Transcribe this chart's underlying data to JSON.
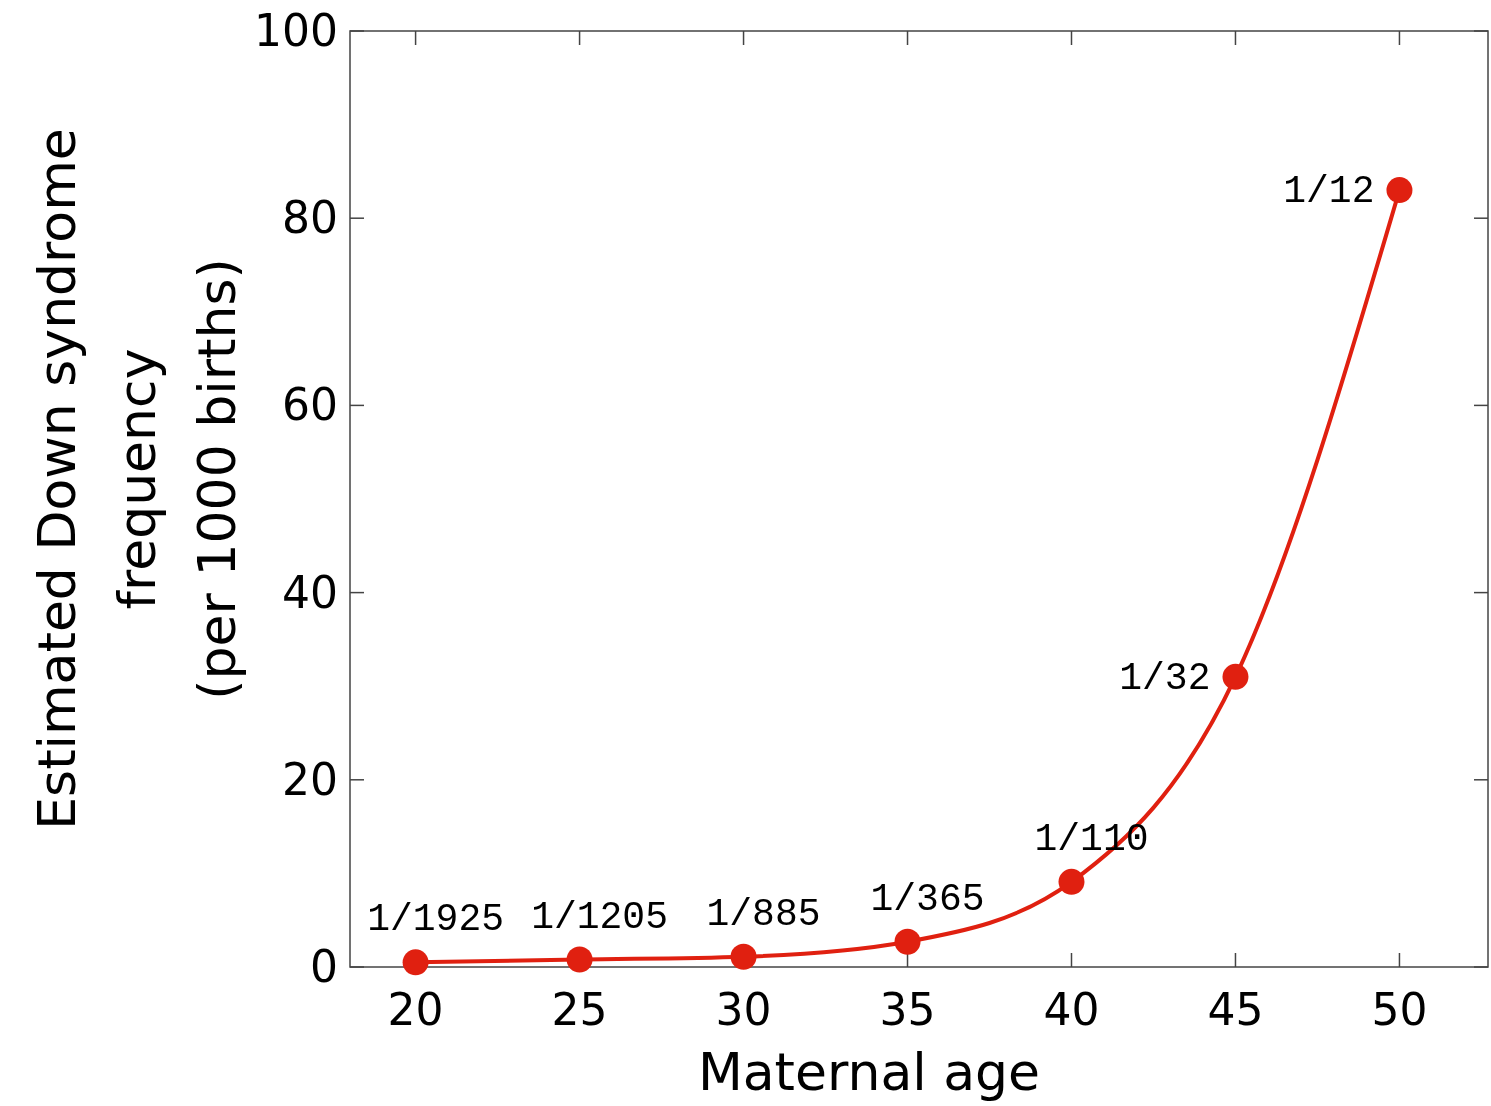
{
  "chart_data": {
    "type": "line",
    "xlabel": "Maternal age",
    "ylabel": "Estimated Down syndrome\nfrequency\n(per 1000 births)",
    "x": [
      20,
      25,
      30,
      35,
      40,
      45,
      50
    ],
    "series": [
      {
        "color": "#e02010",
        "values": [
          0.5,
          0.8,
          1.1,
          2.7,
          9.1,
          31,
          83
        ]
      }
    ],
    "annotations": [
      {
        "text": "1/1925",
        "x": 20,
        "y": 0.5
      },
      {
        "text": "1/1205",
        "x": 25,
        "y": 0.8
      },
      {
        "text": "1/885",
        "x": 30,
        "y": 1.1
      },
      {
        "text": "1/365",
        "x": 35,
        "y": 2.7
      },
      {
        "text": "1/110",
        "x": 40,
        "y": 9.1
      },
      {
        "text": "1/32",
        "x": 45,
        "y": 31
      },
      {
        "text": "1/12",
        "x": 50,
        "y": 83
      }
    ],
    "xlim": [
      18,
      52.7
    ],
    "xticks": [
      20,
      25,
      30,
      35,
      40,
      45,
      50
    ],
    "ylim": [
      0,
      100
    ],
    "yticks": [
      0,
      20,
      40,
      60,
      80,
      100
    ],
    "grid": false,
    "marker": "circle",
    "line_style": "solid"
  }
}
